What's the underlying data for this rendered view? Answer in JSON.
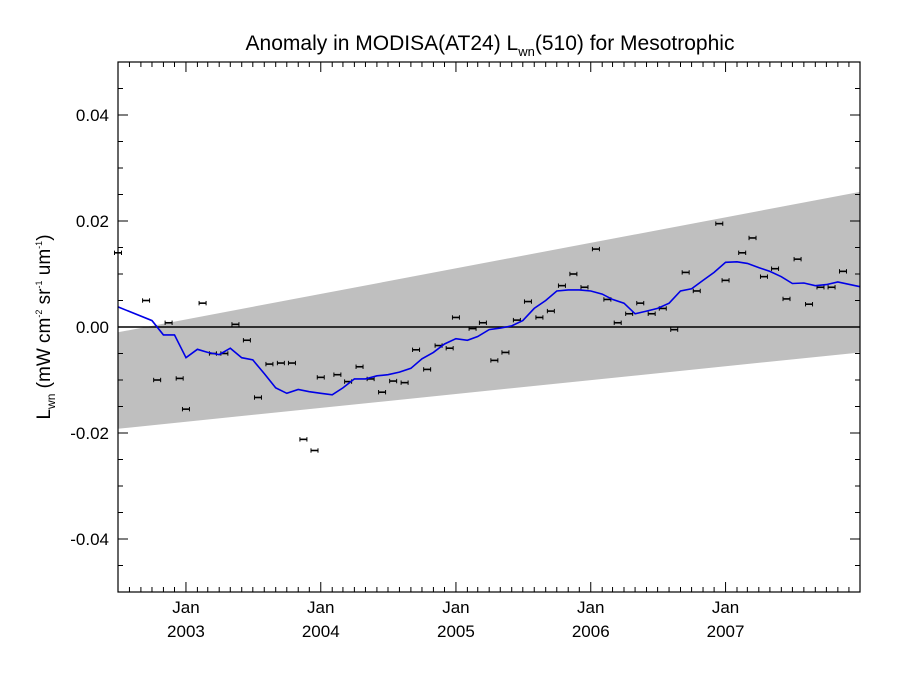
{
  "chart_data": {
    "type": "scatter",
    "title": {
      "prefix": "Anomaly in MODISA(AT24) L",
      "subscript": "wn",
      "suffix": "(510) for Mesotrophic"
    },
    "ylabel": {
      "base": "L",
      "base_sub": "wn",
      "unit_open": " (mW cm",
      "unit_sup1": "-2",
      "unit_sr": " sr",
      "unit_sup2": "-1",
      "unit_um": " um",
      "unit_sup3": "-1",
      "unit_close": ")"
    },
    "x_range": [
      "2002-07-01",
      "2007-12-31"
    ],
    "ylim": [
      -0.05,
      0.05
    ],
    "y_major_ticks": [
      -0.04,
      -0.02,
      0.0,
      0.02,
      0.04
    ],
    "y_tick_labels": [
      "-0.04",
      "-0.02",
      "0.00",
      "0.02",
      "0.04"
    ],
    "y_minor_step": 0.005,
    "x_tick_labels": [
      {
        "date": "2003-01-01",
        "month": "Jan",
        "year": "2003"
      },
      {
        "date": "2004-01-01",
        "month": "Jan",
        "year": "2004"
      },
      {
        "date": "2005-01-01",
        "month": "Jan",
        "year": "2005"
      },
      {
        "date": "2006-01-01",
        "month": "Jan",
        "year": "2006"
      },
      {
        "date": "2007-01-01",
        "month": "Jan",
        "year": "2007"
      }
    ],
    "zero_line": true,
    "grid": false,
    "colors": {
      "points": "#000000",
      "smooth_line": "#0000e6",
      "band": "#bfbfbf",
      "zero_line": "#000000"
    },
    "band": {
      "upper": [
        {
          "x": "2002-07-01",
          "y": -0.001
        },
        {
          "x": "2007-12-31",
          "y": 0.0255
        }
      ],
      "lower": [
        {
          "x": "2002-07-01",
          "y": -0.0192
        },
        {
          "x": "2007-12-31",
          "y": -0.0048
        }
      ]
    },
    "points": [
      {
        "x": "2002-07-01",
        "y": 0.014
      },
      {
        "x": "2002-09-15",
        "y": 0.005
      },
      {
        "x": "2002-10-15",
        "y": -0.01
      },
      {
        "x": "2002-11-15",
        "y": 0.0008
      },
      {
        "x": "2002-12-15",
        "y": -0.0097
      },
      {
        "x": "2003-01-01",
        "y": -0.0155
      },
      {
        "x": "2003-02-15",
        "y": 0.0045
      },
      {
        "x": "2003-03-15",
        "y": -0.005
      },
      {
        "x": "2003-04-15",
        "y": -0.005
      },
      {
        "x": "2003-05-15",
        "y": 0.0005
      },
      {
        "x": "2003-06-15",
        "y": -0.0025
      },
      {
        "x": "2003-07-15",
        "y": -0.0133
      },
      {
        "x": "2003-08-15",
        "y": -0.007
      },
      {
        "x": "2003-09-15",
        "y": -0.0068
      },
      {
        "x": "2003-10-15",
        "y": -0.0068
      },
      {
        "x": "2003-11-15",
        "y": -0.0212
      },
      {
        "x": "2003-12-15",
        "y": -0.0233
      },
      {
        "x": "2004-01-01",
        "y": -0.0095
      },
      {
        "x": "2004-02-15",
        "y": -0.009
      },
      {
        "x": "2004-03-15",
        "y": -0.0103
      },
      {
        "x": "2004-04-15",
        "y": -0.0075
      },
      {
        "x": "2004-05-15",
        "y": -0.0098
      },
      {
        "x": "2004-06-15",
        "y": -0.0123
      },
      {
        "x": "2004-07-15",
        "y": -0.0102
      },
      {
        "x": "2004-08-15",
        "y": -0.0105
      },
      {
        "x": "2004-09-15",
        "y": -0.0043
      },
      {
        "x": "2004-10-15",
        "y": -0.008
      },
      {
        "x": "2004-11-15",
        "y": -0.0035
      },
      {
        "x": "2004-12-15",
        "y": -0.004
      },
      {
        "x": "2005-01-01",
        "y": 0.0018
      },
      {
        "x": "2005-02-15",
        "y": -0.0003
      },
      {
        "x": "2005-03-15",
        "y": 0.0008
      },
      {
        "x": "2005-04-15",
        "y": -0.0063
      },
      {
        "x": "2005-05-15",
        "y": -0.0048
      },
      {
        "x": "2005-06-15",
        "y": 0.0013
      },
      {
        "x": "2005-07-15",
        "y": 0.0048
      },
      {
        "x": "2005-08-15",
        "y": 0.0018
      },
      {
        "x": "2005-09-15",
        "y": 0.003
      },
      {
        "x": "2005-10-15",
        "y": 0.0078
      },
      {
        "x": "2005-11-15",
        "y": 0.01
      },
      {
        "x": "2005-12-15",
        "y": 0.0075
      },
      {
        "x": "2006-01-15",
        "y": 0.0147
      },
      {
        "x": "2006-02-15",
        "y": 0.0052
      },
      {
        "x": "2006-03-15",
        "y": 0.0008
      },
      {
        "x": "2006-04-15",
        "y": 0.0025
      },
      {
        "x": "2006-05-15",
        "y": 0.0045
      },
      {
        "x": "2006-06-15",
        "y": 0.0025
      },
      {
        "x": "2006-07-15",
        "y": 0.0035
      },
      {
        "x": "2006-08-15",
        "y": -0.0005
      },
      {
        "x": "2006-09-15",
        "y": 0.0103
      },
      {
        "x": "2006-10-15",
        "y": 0.0068
      },
      {
        "x": "2006-12-15",
        "y": 0.0195
      },
      {
        "x": "2007-01-01",
        "y": 0.0088
      },
      {
        "x": "2007-02-15",
        "y": 0.014
      },
      {
        "x": "2007-03-15",
        "y": 0.0168
      },
      {
        "x": "2007-04-15",
        "y": 0.0095
      },
      {
        "x": "2007-05-15",
        "y": 0.011
      },
      {
        "x": "2007-06-15",
        "y": 0.0053
      },
      {
        "x": "2007-07-15",
        "y": 0.0128
      },
      {
        "x": "2007-08-15",
        "y": 0.0043
      },
      {
        "x": "2007-09-15",
        "y": 0.0075
      },
      {
        "x": "2007-10-15",
        "y": 0.0075
      },
      {
        "x": "2007-11-15",
        "y": 0.0105
      }
    ],
    "smooth_line": [
      {
        "x": "2002-07-01",
        "y": 0.0038
      },
      {
        "x": "2002-10-01",
        "y": 0.0012
      },
      {
        "x": "2002-11-01",
        "y": -0.0015
      },
      {
        "x": "2002-12-01",
        "y": -0.0015
      },
      {
        "x": "2003-01-01",
        "y": -0.0058
      },
      {
        "x": "2003-02-01",
        "y": -0.0042
      },
      {
        "x": "2003-03-01",
        "y": -0.0048
      },
      {
        "x": "2003-04-01",
        "y": -0.0052
      },
      {
        "x": "2003-05-01",
        "y": -0.004
      },
      {
        "x": "2003-06-01",
        "y": -0.0058
      },
      {
        "x": "2003-07-01",
        "y": -0.0062
      },
      {
        "x": "2003-08-01",
        "y": -0.0088
      },
      {
        "x": "2003-09-01",
        "y": -0.0115
      },
      {
        "x": "2003-10-01",
        "y": -0.0125
      },
      {
        "x": "2003-11-01",
        "y": -0.0118
      },
      {
        "x": "2003-12-01",
        "y": -0.0122
      },
      {
        "x": "2004-01-01",
        "y": -0.0125
      },
      {
        "x": "2004-02-01",
        "y": -0.0128
      },
      {
        "x": "2004-03-01",
        "y": -0.0115
      },
      {
        "x": "2004-04-01",
        "y": -0.0098
      },
      {
        "x": "2004-05-01",
        "y": -0.0098
      },
      {
        "x": "2004-06-01",
        "y": -0.0092
      },
      {
        "x": "2004-07-01",
        "y": -0.009
      },
      {
        "x": "2004-08-01",
        "y": -0.0085
      },
      {
        "x": "2004-09-01",
        "y": -0.0078
      },
      {
        "x": "2004-10-01",
        "y": -0.006
      },
      {
        "x": "2004-11-01",
        "y": -0.0048
      },
      {
        "x": "2004-12-01",
        "y": -0.0032
      },
      {
        "x": "2005-01-01",
        "y": -0.0022
      },
      {
        "x": "2005-02-01",
        "y": -0.0025
      },
      {
        "x": "2005-03-01",
        "y": -0.0018
      },
      {
        "x": "2005-04-01",
        "y": -0.0005
      },
      {
        "x": "2005-05-01",
        "y": -0.0002
      },
      {
        "x": "2005-06-01",
        "y": 0.0002
      },
      {
        "x": "2005-07-01",
        "y": 0.0012
      },
      {
        "x": "2005-08-01",
        "y": 0.0035
      },
      {
        "x": "2005-09-01",
        "y": 0.005
      },
      {
        "x": "2005-10-01",
        "y": 0.0068
      },
      {
        "x": "2005-11-01",
        "y": 0.007
      },
      {
        "x": "2005-12-01",
        "y": 0.007
      },
      {
        "x": "2006-01-01",
        "y": 0.0068
      },
      {
        "x": "2006-02-01",
        "y": 0.0062
      },
      {
        "x": "2006-03-01",
        "y": 0.0052
      },
      {
        "x": "2006-04-01",
        "y": 0.0045
      },
      {
        "x": "2006-05-01",
        "y": 0.0025
      },
      {
        "x": "2006-06-01",
        "y": 0.003
      },
      {
        "x": "2006-07-01",
        "y": 0.0035
      },
      {
        "x": "2006-08-01",
        "y": 0.0045
      },
      {
        "x": "2006-09-01",
        "y": 0.0068
      },
      {
        "x": "2006-10-01",
        "y": 0.0072
      },
      {
        "x": "2006-11-01",
        "y": 0.0088
      },
      {
        "x": "2006-12-01",
        "y": 0.0103
      },
      {
        "x": "2007-01-01",
        "y": 0.0122
      },
      {
        "x": "2007-02-01",
        "y": 0.0123
      },
      {
        "x": "2007-03-01",
        "y": 0.012
      },
      {
        "x": "2007-04-01",
        "y": 0.0112
      },
      {
        "x": "2007-05-01",
        "y": 0.0105
      },
      {
        "x": "2007-06-01",
        "y": 0.0095
      },
      {
        "x": "2007-07-01",
        "y": 0.0082
      },
      {
        "x": "2007-08-01",
        "y": 0.0083
      },
      {
        "x": "2007-09-01",
        "y": 0.0078
      },
      {
        "x": "2007-10-01",
        "y": 0.008
      },
      {
        "x": "2007-11-01",
        "y": 0.0085
      },
      {
        "x": "2007-12-31",
        "y": 0.0076
      }
    ]
  }
}
